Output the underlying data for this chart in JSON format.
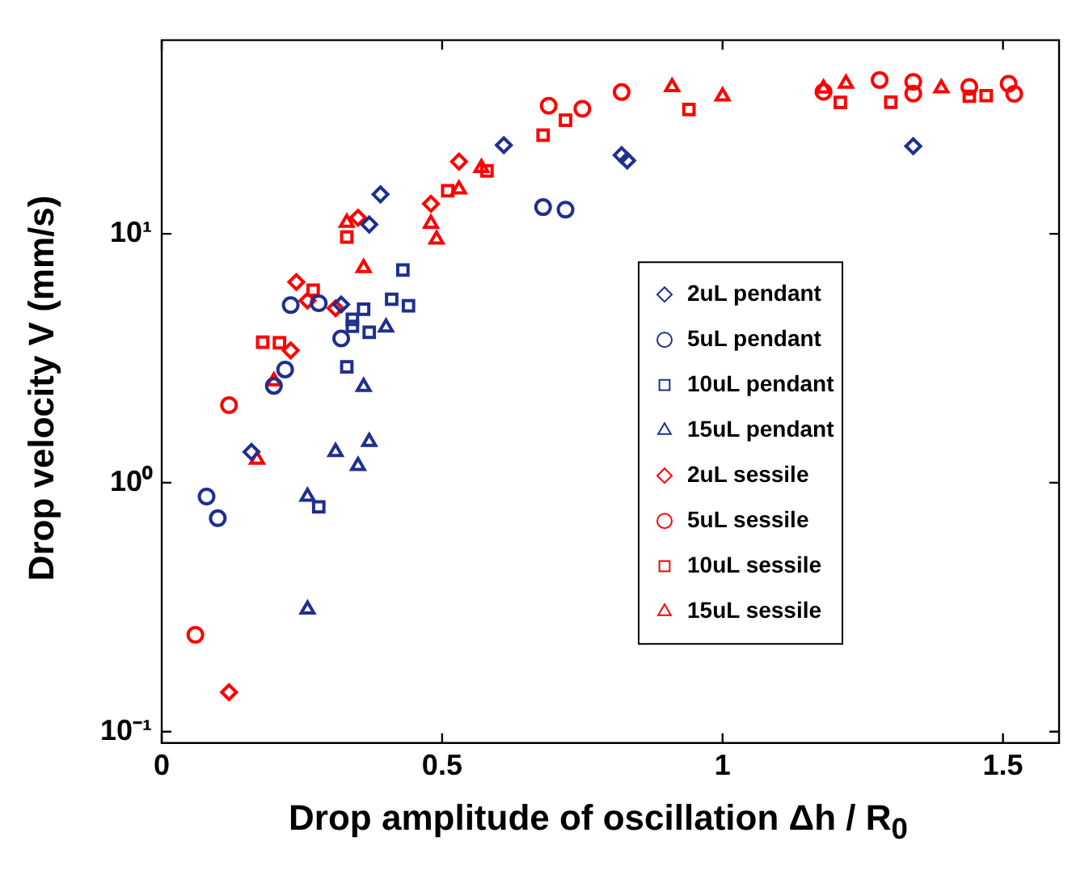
{
  "chart_data": {
    "type": "scatter",
    "xlabel": "Drop amplitude of oscillation Δh / R$_{0}$",
    "ylabel": "Drop velocity V (mm/s)",
    "xlim": [
      0,
      1.6
    ],
    "xticks": [
      0,
      0.5,
      1,
      1.5
    ],
    "ylim": [
      0.09,
      60
    ],
    "yticks": [
      {
        "value": 0.1,
        "label": "10⁻¹"
      },
      {
        "value": 1,
        "label": "10⁰"
      },
      {
        "value": 10,
        "label": "10¹"
      }
    ],
    "log": "y",
    "grid": false,
    "legend": "right",
    "series": [
      {
        "name": "2uL pendant",
        "color": "#1f2f8f",
        "marker": "diamond",
        "x": [
          0.16,
          0.32,
          0.37,
          0.39,
          0.61,
          0.82,
          0.83,
          1.34
        ],
        "values": [
          1.33,
          5.2,
          10.9,
          14.4,
          22.7,
          20.7,
          19.7,
          22.5
        ]
      },
      {
        "name": "5uL pendant",
        "color": "#1f2f8f",
        "marker": "circle",
        "x": [
          0.08,
          0.1,
          0.2,
          0.22,
          0.23,
          0.28,
          0.32,
          0.68,
          0.72
        ],
        "values": [
          0.88,
          0.72,
          2.45,
          2.85,
          5.17,
          5.26,
          3.8,
          12.8,
          12.5
        ]
      },
      {
        "name": "10uL pendant",
        "color": "#1f2f8f",
        "marker": "square",
        "x": [
          0.28,
          0.33,
          0.34,
          0.34,
          0.36,
          0.37,
          0.41,
          0.43,
          0.44
        ],
        "values": [
          0.8,
          2.92,
          4.53,
          4.25,
          4.98,
          4.02,
          5.46,
          7.15,
          5.14
        ]
      },
      {
        "name": "15uL pendant",
        "color": "#1f2f8f",
        "marker": "triangle",
        "x": [
          0.26,
          0.26,
          0.31,
          0.35,
          0.36,
          0.37,
          0.4
        ],
        "values": [
          0.31,
          0.88,
          1.33,
          1.17,
          2.43,
          1.46,
          4.21
        ]
      },
      {
        "name": "2uL sessile",
        "color": "#ff0000",
        "marker": "diamond",
        "x": [
          0.12,
          0.23,
          0.24,
          0.26,
          0.31,
          0.35,
          0.48,
          0.53
        ],
        "values": [
          0.144,
          3.4,
          6.4,
          5.39,
          5.02,
          11.6,
          13.2,
          19.5
        ]
      },
      {
        "name": "5uL sessile",
        "color": "#ff0000",
        "marker": "circle",
        "x": [
          0.06,
          0.12,
          0.69,
          0.75,
          0.82,
          1.18,
          1.28,
          1.34,
          1.34,
          1.44,
          1.51,
          1.52
        ],
        "values": [
          0.245,
          2.05,
          32.7,
          31.8,
          37.1,
          37.2,
          41.5,
          40.8,
          36.6,
          38.9,
          40.1,
          36.5
        ]
      },
      {
        "name": "10uL sessile",
        "color": "#ff0000",
        "marker": "square",
        "x": [
          0.18,
          0.21,
          0.27,
          0.33,
          0.51,
          0.58,
          0.68,
          0.72,
          0.94,
          1.21,
          1.3,
          1.44,
          1.47
        ],
        "values": [
          3.67,
          3.65,
          5.94,
          9.7,
          14.9,
          17.9,
          24.9,
          28.6,
          31.6,
          33.7,
          33.8,
          35.7,
          35.9
        ]
      },
      {
        "name": "15uL sessile",
        "color": "#ff0000",
        "marker": "triangle",
        "x": [
          0.17,
          0.2,
          0.33,
          0.36,
          0.48,
          0.49,
          0.53,
          0.57,
          0.91,
          1.0,
          1.18,
          1.22,
          1.39
        ],
        "values": [
          1.24,
          2.56,
          11.1,
          7.3,
          11.0,
          9.5,
          15.1,
          18.4,
          38.9,
          35.7,
          38.4,
          40.2,
          38.5
        ]
      }
    ]
  }
}
